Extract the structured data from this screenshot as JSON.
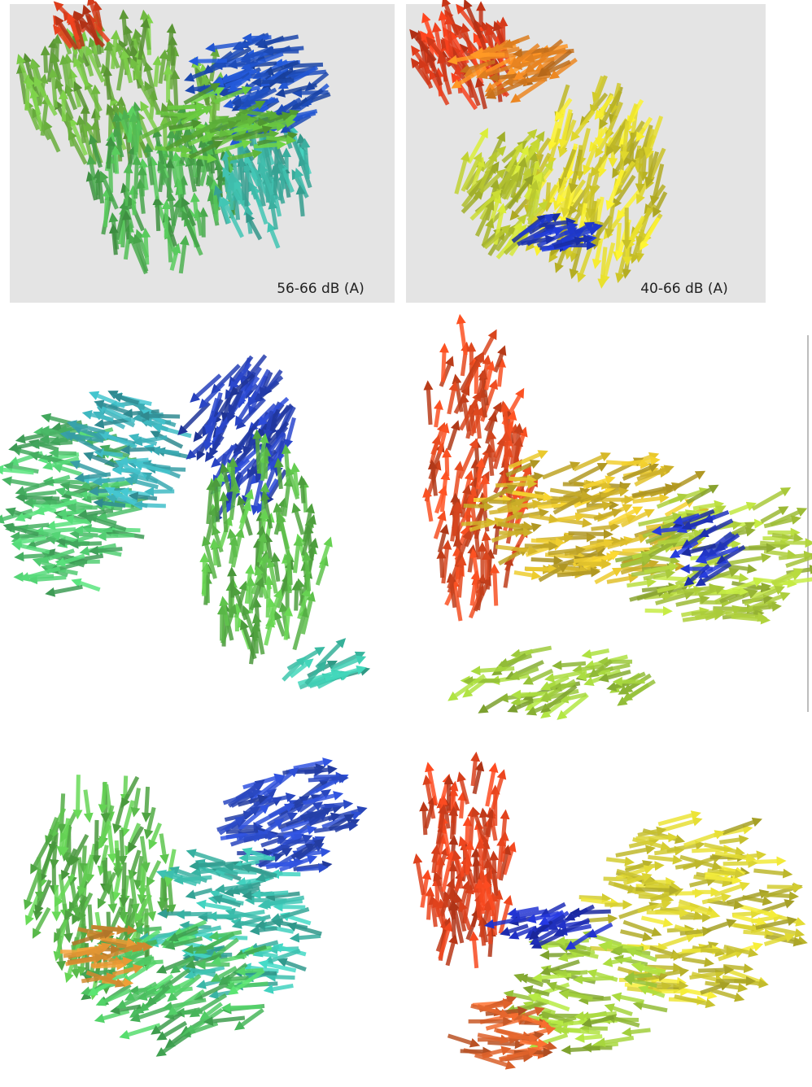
{
  "figure": {
    "panel_labels": [
      "56-66 dB (A)",
      "40-66 dB (A)"
    ]
  }
}
